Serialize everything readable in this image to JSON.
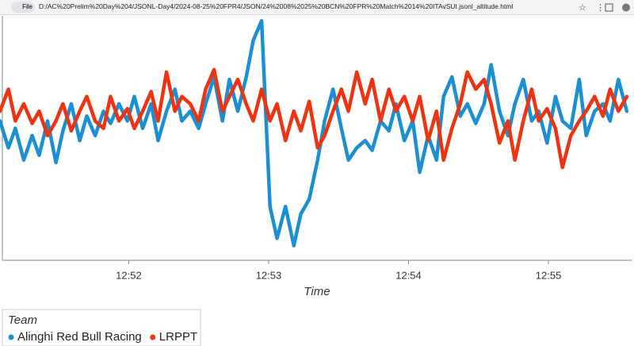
{
  "browser": {
    "file_label": "File",
    "url": "D:/AC%20Prelim%20Day%204/JSONL-Day4/2024-08-25%20FPR4/JSON/24%2008%2025%20BCN%20FPR%20Match%2014%20ITAvSUI.jsonl_altitude.html"
  },
  "chart_data": {
    "type": "line",
    "x_label": "Time",
    "legend_title": "Team",
    "xlim": [
      51.08,
      55.6
    ],
    "ylim": [
      0,
      100
    ],
    "xticks": [
      {
        "value": 52,
        "label": "12:52"
      },
      {
        "value": 53,
        "label": "12:53"
      },
      {
        "value": 54,
        "label": "12:54"
      },
      {
        "value": 55,
        "label": "12:55"
      }
    ],
    "x": [
      51.08,
      51.14,
      51.19,
      51.25,
      51.31,
      51.36,
      51.42,
      51.48,
      51.53,
      51.59,
      51.65,
      51.7,
      51.76,
      51.82,
      51.87,
      51.93,
      51.99,
      52.04,
      52.1,
      52.16,
      52.21,
      52.27,
      52.33,
      52.38,
      52.44,
      52.5,
      52.55,
      52.61,
      52.67,
      52.72,
      52.78,
      52.84,
      52.89,
      52.95,
      53.01,
      53.06,
      53.12,
      53.18,
      53.23,
      53.29,
      53.35,
      53.4,
      53.46,
      53.52,
      53.57,
      53.63,
      53.69,
      53.74,
      53.8,
      53.86,
      53.91,
      53.97,
      54.03,
      54.08,
      54.14,
      54.2,
      54.25,
      54.31,
      54.37,
      54.42,
      54.48,
      54.54,
      54.59,
      54.65,
      54.71,
      54.76,
      54.82,
      54.88,
      54.93,
      54.99,
      55.05,
      55.1,
      55.16,
      55.22,
      55.27,
      55.33,
      55.39,
      55.44,
      55.5,
      55.56
    ],
    "series": [
      {
        "name": "Alinghi Red Bull Racing",
        "color": "#1a8fd1",
        "values": [
          57,
          46,
          54,
          41,
          51,
          43,
          57,
          40,
          53,
          64,
          49,
          59,
          51,
          61,
          56,
          64,
          57,
          67,
          54,
          64,
          49,
          61,
          70,
          57,
          61,
          54,
          64,
          75,
          57,
          74,
          61,
          75,
          90,
          98,
          22,
          9,
          22,
          6,
          19,
          25,
          41,
          57,
          70,
          54,
          41,
          46,
          49,
          45,
          57,
          53,
          64,
          49,
          57,
          36,
          51,
          41,
          67,
          75,
          59,
          64,
          56,
          64,
          80,
          61,
          51,
          64,
          74,
          57,
          61,
          48,
          67,
          57,
          54,
          74,
          51,
          61,
          64,
          57,
          74,
          61
        ]
      },
      {
        "name": "LRPPT",
        "color": "#ee3311",
        "values": [
          61,
          70,
          57,
          64,
          56,
          61,
          51,
          57,
          64,
          53,
          61,
          67,
          57,
          54,
          67,
          57,
          62,
          54,
          61,
          69,
          57,
          77,
          61,
          67,
          64,
          57,
          70,
          78,
          61,
          67,
          74,
          64,
          57,
          70,
          57,
          64,
          49,
          61,
          53,
          65,
          46,
          51,
          61,
          70,
          61,
          77,
          64,
          74,
          57,
          70,
          61,
          67,
          57,
          67,
          49,
          61,
          41,
          54,
          64,
          77,
          70,
          74,
          64,
          48,
          57,
          41,
          57,
          70,
          57,
          62,
          54,
          38,
          51,
          57,
          61,
          67,
          59,
          70,
          61,
          67
        ]
      }
    ]
  }
}
